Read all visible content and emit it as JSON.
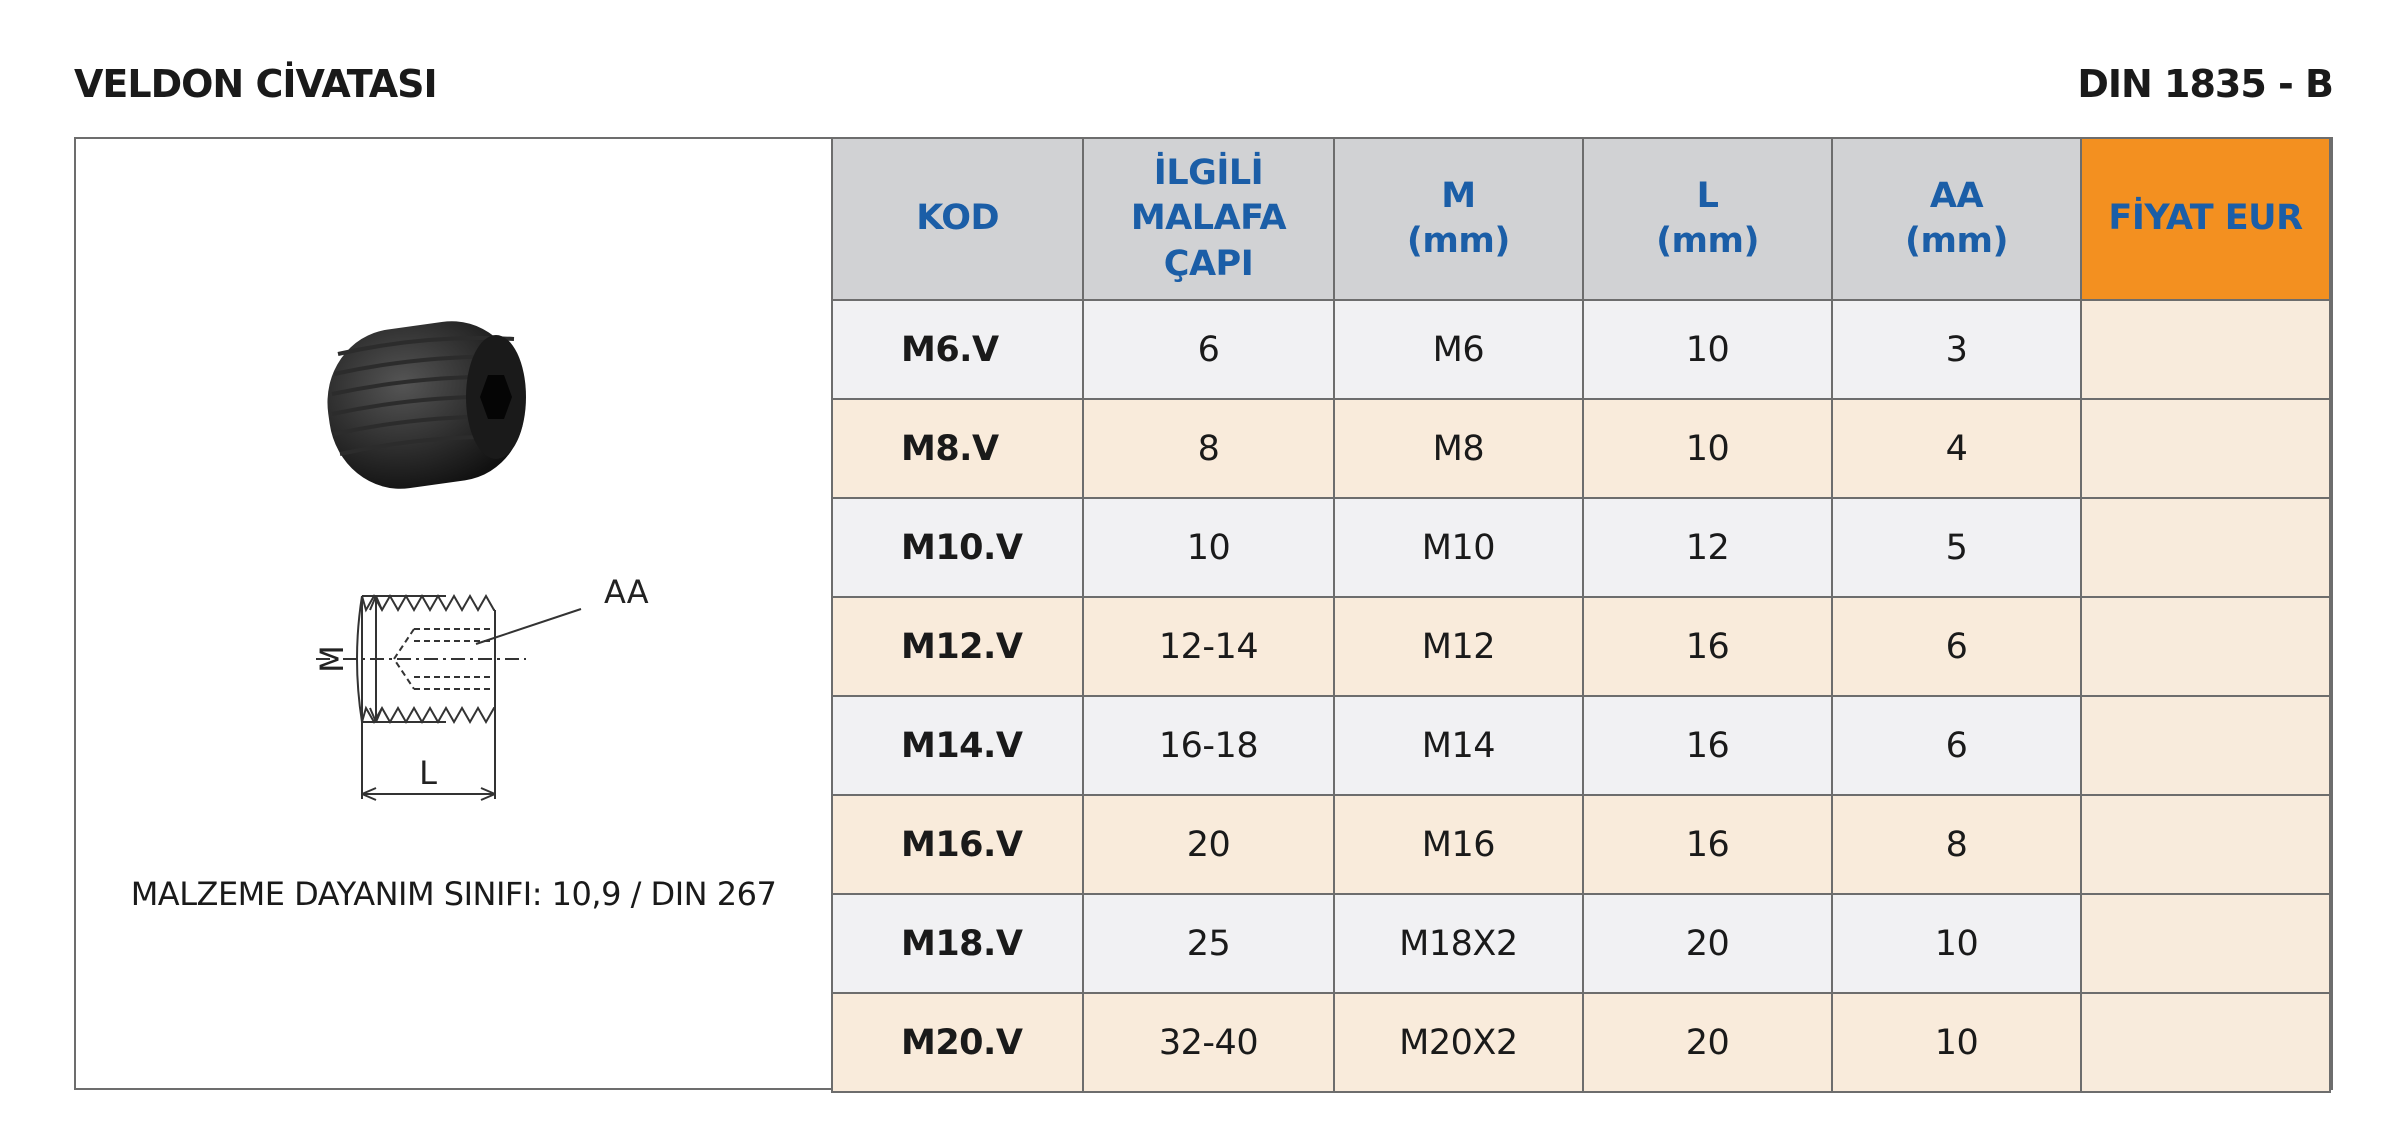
{
  "header": {
    "title": "VELDON CİVATASI",
    "standard": "DIN 1835 - B"
  },
  "diagram": {
    "aa_label": "AA",
    "m_label": "M",
    "l_label": "L"
  },
  "caption": "MALZEME DAYANIM SINIFI: 10,9 / DIN 267",
  "table": {
    "columns": [
      [
        "KOD"
      ],
      [
        "İLGİLİ",
        "MALAFA",
        "ÇAPI"
      ],
      [
        "M",
        "(mm)"
      ],
      [
        "L",
        "(mm)"
      ],
      [
        "AA",
        "(mm)"
      ],
      [
        "FİYAT EUR"
      ]
    ],
    "rows": [
      [
        "M6.V",
        "6",
        "M6",
        "10",
        "3"
      ],
      [
        "M8.V",
        "8",
        "M8",
        "10",
        "4"
      ],
      [
        "M10.V",
        "10",
        "M10",
        "12",
        "5"
      ],
      [
        "M12.V",
        "12-14",
        "M12",
        "16",
        "6"
      ],
      [
        "M14.V",
        "16-18",
        "M14",
        "16",
        "6"
      ],
      [
        "M16.V",
        "20",
        "M16",
        "16",
        "8"
      ],
      [
        "M18.V",
        "25",
        "M18X2",
        "20",
        "10"
      ],
      [
        "M20.V",
        "32-40",
        "M20X2",
        "20",
        "10"
      ]
    ]
  }
}
